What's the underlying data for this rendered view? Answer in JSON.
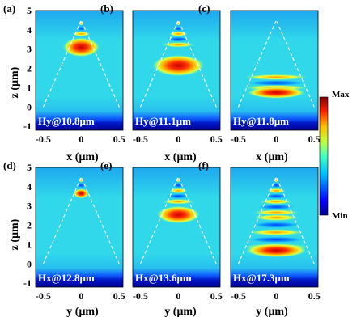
{
  "axis": {
    "z_label": "z (μm)",
    "x_label": "x (μm)",
    "y_label": "y (μm)",
    "z_ticks": [
      "5",
      "4",
      "3",
      "2",
      "1",
      "0",
      "-1"
    ],
    "h_ticks": [
      "-0.5",
      "0",
      "0.5"
    ]
  },
  "colorbar": {
    "max_label": "Max",
    "min_label": "Min"
  },
  "panels": [
    {
      "id": "a",
      "label": "(a)",
      "field": "Hy@10.8μm",
      "pattern": "spot",
      "spot_z": 3.1,
      "spot_w": 0.24,
      "spot_h": 0.5
    },
    {
      "id": "b",
      "label": "(b)",
      "field": "Hy@11.1μm",
      "pattern": "spot",
      "spot_z": 2.15,
      "spot_w": 0.34,
      "spot_h": 0.55
    },
    {
      "id": "c",
      "label": "(c)",
      "field": "Hy@11.8μm",
      "pattern": "base",
      "spot_z": 0.75,
      "spot_w": 0.38,
      "spot_h": 0.3
    },
    {
      "id": "d",
      "label": "(d)",
      "field": "Hx@12.8μm",
      "pattern": "spot",
      "spot_z": 3.65,
      "spot_w": 0.1,
      "spot_h": 0.25
    },
    {
      "id": "e",
      "label": "(e)",
      "field": "Hx@13.6μm",
      "pattern": "spot",
      "spot_z": 2.55,
      "spot_w": 0.28,
      "spot_h": 0.45
    },
    {
      "id": "f",
      "label": "(f)",
      "field": "Hx@17.3μm",
      "pattern": "stripes",
      "spot_z": 0.7,
      "spot_w": 0.4,
      "spot_h": 0.35
    }
  ],
  "colors": {
    "jet": [
      "#00008f",
      "#0000ff",
      "#0080ff",
      "#00ffff",
      "#80ff80",
      "#ffff00",
      "#ff8000",
      "#ff0000",
      "#800000"
    ],
    "background": "#2fd6e8",
    "dashed_outline": "#ffffff"
  }
}
